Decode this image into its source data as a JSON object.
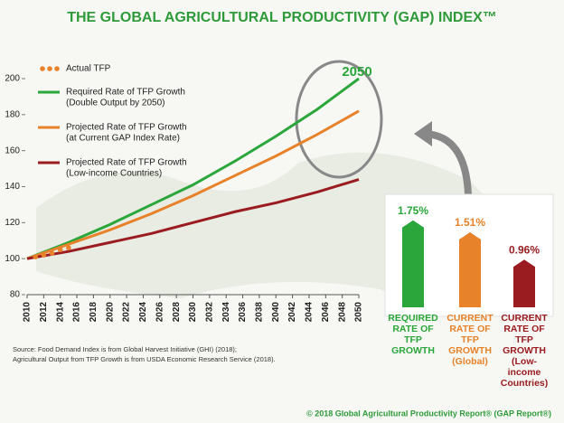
{
  "chart_data": [
    {
      "type": "line",
      "title": "THE GLOBAL AGRICULTURAL PRODUCTIVITY (GAP) INDEX™",
      "annotation": "2050",
      "x": [
        2010,
        2015,
        2020,
        2025,
        2030,
        2035,
        2040,
        2045,
        2050
      ],
      "xlim": [
        2010,
        2050
      ],
      "xticks": [
        2010,
        2012,
        2014,
        2016,
        2018,
        2020,
        2022,
        2024,
        2026,
        2028,
        2030,
        2032,
        2034,
        2036,
        2038,
        2040,
        2042,
        2044,
        2046,
        2048,
        2050
      ],
      "ylim": [
        80,
        200
      ],
      "yticks": [
        80,
        100,
        120,
        140,
        160,
        180,
        200
      ],
      "grid": false,
      "series": [
        {
          "name": "Actual TFP",
          "style": "dots",
          "color": "#e8822a",
          "x": [
            2011,
            2012,
            2013,
            2014,
            2015
          ],
          "values": [
            101,
            102,
            103,
            105,
            106
          ]
        },
        {
          "name": "Required Rate of TFP Growth",
          "note": "(Double Output by 2050)",
          "style": "line",
          "color": "#2aa63a",
          "values": [
            100,
            109,
            119,
            130,
            141,
            154,
            168,
            183,
            200
          ]
        },
        {
          "name": "Projected Rate of TFP Growth",
          "note": "(at Current GAP Index Rate)",
          "style": "line",
          "color": "#e8822a",
          "values": [
            100,
            108,
            116,
            125,
            135,
            146,
            157,
            169,
            182
          ]
        },
        {
          "name": "Projected Rate of TFP Growth",
          "note": "(Low-income Countries)",
          "style": "line",
          "color": "#9b1c20",
          "values": [
            100,
            104,
            109,
            114,
            120,
            126,
            131,
            137,
            144
          ]
        }
      ]
    },
    {
      "type": "bar",
      "categories": [
        "REQUIRED RATE OF TFP GROWTH",
        "CURRENT RATE OF TFP GROWTH (Global)",
        "CURRENT RATE OF TFP GROWTH (Low-income Countries)"
      ],
      "values": [
        1.75,
        1.51,
        0.96
      ],
      "value_labels": [
        "1.75%",
        "1.51%",
        "0.96%"
      ],
      "colors": [
        "#2aa63a",
        "#e8822a",
        "#9b1c20"
      ]
    }
  ],
  "source": [
    "Source: Food Demand Index is from Global Harvest Initiative (GHI) (2018);",
    "Agricultural Output from TFP Growth is from USDA Economic Research Service (2018)."
  ],
  "footer": "© 2018 Global Agricultural Productivity Report® (GAP Report®)"
}
